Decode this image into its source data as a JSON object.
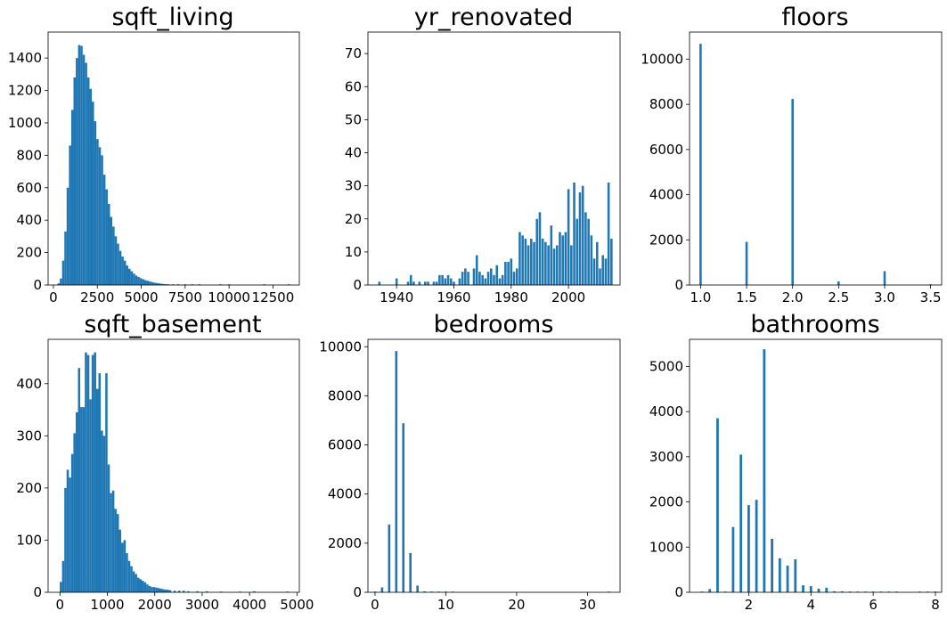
{
  "figure": {
    "background": "#ffffff",
    "bar_color": "#1f77b4"
  },
  "chart_data": [
    {
      "type": "bar",
      "title": "sqft_living",
      "xlim": [
        -300,
        14000
      ],
      "ylim": [
        0,
        1560
      ],
      "xticks": [
        0,
        2500,
        5000,
        7500,
        10000,
        12500
      ],
      "yticks": [
        0,
        200,
        400,
        600,
        800,
        1000,
        1200,
        1400
      ],
      "bin_width": 130,
      "x": [
        300,
        430,
        560,
        690,
        820,
        950,
        1080,
        1210,
        1340,
        1470,
        1600,
        1730,
        1860,
        1990,
        2120,
        2250,
        2380,
        2510,
        2640,
        2770,
        2900,
        3030,
        3160,
        3290,
        3420,
        3550,
        3680,
        3810,
        3940,
        4070,
        4200,
        4330,
        4460,
        4590,
        4720,
        4850,
        4980,
        5110,
        5240,
        5370,
        5500,
        5630,
        5760,
        5890,
        6020,
        6150,
        6280,
        6410,
        6540,
        6800,
        7100,
        7500,
        7900,
        8300,
        9500,
        10000,
        12000,
        13400
      ],
      "values": [
        10,
        40,
        150,
        330,
        600,
        860,
        1080,
        1280,
        1400,
        1480,
        1475,
        1420,
        1370,
        1280,
        1210,
        1130,
        1010,
        900,
        850,
        800,
        680,
        590,
        500,
        420,
        360,
        300,
        255,
        210,
        175,
        150,
        120,
        100,
        85,
        70,
        58,
        50,
        42,
        36,
        30,
        26,
        22,
        18,
        15,
        12,
        10,
        8,
        6,
        5,
        4,
        3,
        2,
        2,
        1,
        1,
        1,
        1,
        1,
        1
      ]
    },
    {
      "type": "bar",
      "title": "yr_renovated",
      "xlim": [
        1930,
        2018
      ],
      "ylim": [
        0,
        76.5
      ],
      "xticks": [
        1940,
        1960,
        1980,
        2000
      ],
      "yticks": [
        0,
        10,
        20,
        30,
        40,
        50,
        60,
        70
      ],
      "bin_width": 0.8,
      "x": [
        1934,
        1940,
        1944,
        1945,
        1946,
        1948,
        1950,
        1951,
        1953,
        1954,
        1955,
        1956,
        1957,
        1958,
        1959,
        1960,
        1962,
        1963,
        1964,
        1965,
        1967,
        1968,
        1969,
        1970,
        1971,
        1972,
        1973,
        1974,
        1975,
        1976,
        1977,
        1978,
        1979,
        1980,
        1981,
        1982,
        1983,
        1984,
        1985,
        1986,
        1987,
        1988,
        1989,
        1990,
        1991,
        1992,
        1993,
        1994,
        1995,
        1996,
        1997,
        1998,
        1999,
        2000,
        2001,
        2002,
        2003,
        2004,
        2005,
        2006,
        2007,
        2008,
        2009,
        2010,
        2011,
        2012,
        2013,
        2014,
        2015
      ],
      "values": [
        1,
        2,
        1,
        3,
        1,
        1,
        1,
        1,
        1,
        1,
        3,
        3,
        2,
        3,
        2,
        1,
        2,
        4,
        5,
        4,
        5,
        9,
        4,
        3,
        2,
        4,
        5,
        3,
        6,
        2,
        3,
        7,
        7,
        8,
        4,
        5,
        16,
        15,
        14,
        12,
        14,
        13,
        20,
        22,
        14,
        13,
        12,
        18,
        11,
        12,
        16,
        15,
        16,
        29,
        12,
        31,
        20,
        28,
        30,
        22,
        20,
        15,
        8,
        13,
        5,
        9,
        8,
        31,
        14
      ]
    },
    {
      "type": "bar",
      "title": "floors",
      "xlim": [
        0.88,
        3.62
      ],
      "ylim": [
        0,
        11200
      ],
      "xticks": [
        1.0,
        1.5,
        2.0,
        2.5,
        3.0,
        3.5
      ],
      "tick_labels_x": [
        "1.0",
        "1.5",
        "2.0",
        "2.5",
        "3.0",
        "3.5"
      ],
      "yticks": [
        0,
        2000,
        4000,
        6000,
        8000,
        10000
      ],
      "bin_width": 0.025,
      "x": [
        1.0,
        1.5,
        2.0,
        2.5,
        3.0,
        3.5
      ],
      "values": [
        10680,
        1910,
        8240,
        161,
        613,
        8
      ]
    },
    {
      "type": "bar",
      "title": "sqft_basement",
      "xlim": [
        -250,
        5050
      ],
      "ylim": [
        0,
        485
      ],
      "xticks": [
        0,
        1000,
        2000,
        3000,
        4000,
        5000
      ],
      "yticks": [
        0,
        100,
        200,
        300,
        400
      ],
      "bin_width": 48,
      "x": [
        20,
        68,
        116,
        164,
        212,
        260,
        308,
        356,
        404,
        452,
        500,
        548,
        596,
        644,
        692,
        740,
        788,
        836,
        884,
        932,
        980,
        1028,
        1076,
        1124,
        1172,
        1220,
        1268,
        1316,
        1364,
        1412,
        1460,
        1508,
        1556,
        1604,
        1652,
        1700,
        1748,
        1796,
        1844,
        1892,
        1940,
        1988,
        2036,
        2084,
        2132,
        2180,
        2228,
        2276,
        2324,
        2420,
        2516,
        2612,
        2708,
        2900,
        3100,
        3400,
        3800,
        4100,
        4800
      ],
      "values": [
        20,
        60,
        200,
        235,
        220,
        265,
        305,
        345,
        430,
        355,
        355,
        460,
        455,
        370,
        455,
        460,
        390,
        420,
        310,
        300,
        420,
        245,
        190,
        195,
        160,
        150,
        120,
        95,
        100,
        75,
        60,
        50,
        40,
        35,
        28,
        25,
        22,
        19,
        15,
        12,
        10,
        10,
        9,
        8,
        7,
        6,
        5,
        5,
        4,
        3,
        3,
        3,
        2,
        2,
        2,
        1,
        1,
        2,
        1
      ]
    },
    {
      "type": "bar",
      "title": "bedrooms",
      "xlim": [
        -1,
        34.6
      ],
      "ylim": [
        0,
        10300
      ],
      "xticks": [
        0,
        10,
        20,
        30
      ],
      "yticks": [
        0,
        2000,
        4000,
        6000,
        8000,
        10000
      ],
      "bin_width": 0.33,
      "x": [
        0,
        1,
        2,
        3,
        4,
        5,
        6,
        7,
        8,
        9,
        10,
        11,
        33
      ],
      "values": [
        13,
        199,
        2760,
        9824,
        6882,
        1601,
        272,
        38,
        13,
        6,
        3,
        1,
        1
      ]
    },
    {
      "type": "bar",
      "title": "bathrooms",
      "xlim": [
        0.1,
        8.2
      ],
      "ylim": [
        0,
        5600
      ],
      "xticks": [
        2,
        4,
        6,
        8
      ],
      "yticks": [
        0,
        1000,
        2000,
        3000,
        4000,
        5000
      ],
      "bin_width": 0.08,
      "x": [
        0.5,
        0.75,
        1.0,
        1.25,
        1.5,
        1.75,
        2.0,
        2.25,
        2.5,
        2.75,
        3.0,
        3.25,
        3.5,
        3.75,
        4.0,
        4.25,
        4.5,
        4.75,
        5.0,
        5.25,
        5.5,
        5.75,
        6.0,
        6.25,
        6.5,
        6.75,
        7.5,
        7.75,
        8.0
      ],
      "values": [
        4,
        72,
        3852,
        9,
        1446,
        3048,
        1930,
        2047,
        5380,
        1185,
        753,
        589,
        731,
        155,
        136,
        79,
        100,
        23,
        21,
        13,
        10,
        4,
        6,
        2,
        2,
        2,
        1,
        1,
        2
      ]
    }
  ]
}
